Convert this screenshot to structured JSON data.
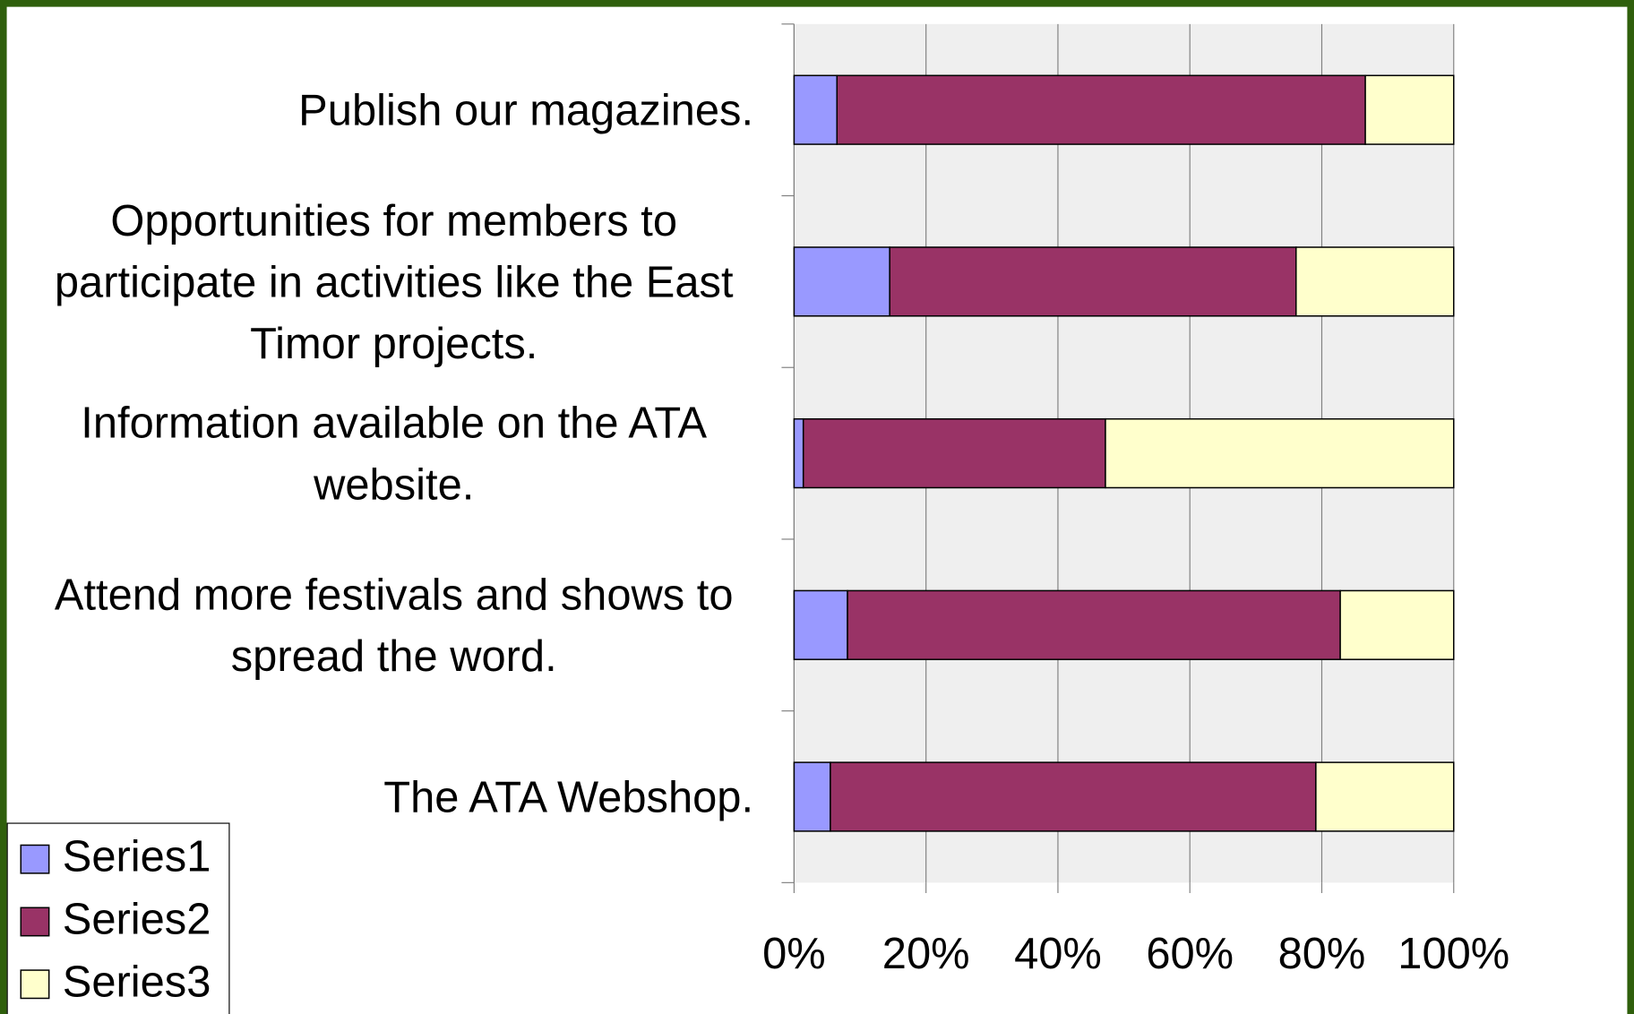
{
  "chart_data": {
    "type": "stacked-bar-horizontal",
    "categories": [
      "Publish our magazines.",
      "Opportunities for members to participate in activities like the East Timor projects.",
      "Information available on the ATA website.",
      "Attend more festivals and shows to spread the word.",
      "The ATA Webshop."
    ],
    "series": [
      {
        "name": "Series1",
        "color": "#9999ff",
        "values": [
          6.5,
          14.5,
          1.4,
          8.1,
          5.5
        ]
      },
      {
        "name": "Series2",
        "color": "#993366",
        "values": [
          80.1,
          61.6,
          45.8,
          74.7,
          73.6
        ]
      },
      {
        "name": "Series3",
        "color": "#ffffcc",
        "values": [
          13.4,
          23.9,
          52.8,
          17.2,
          20.9
        ]
      }
    ],
    "xlim": [
      0,
      100
    ],
    "xticks": [
      {
        "value": 0,
        "label": "0%"
      },
      {
        "value": 20,
        "label": "20%"
      },
      {
        "value": 40,
        "label": "40%"
      },
      {
        "value": 60,
        "label": "60%"
      },
      {
        "value": 80,
        "label": "80%"
      },
      {
        "value": 100,
        "label": "100%"
      }
    ],
    "grid": true,
    "legend": "bottom-left"
  }
}
